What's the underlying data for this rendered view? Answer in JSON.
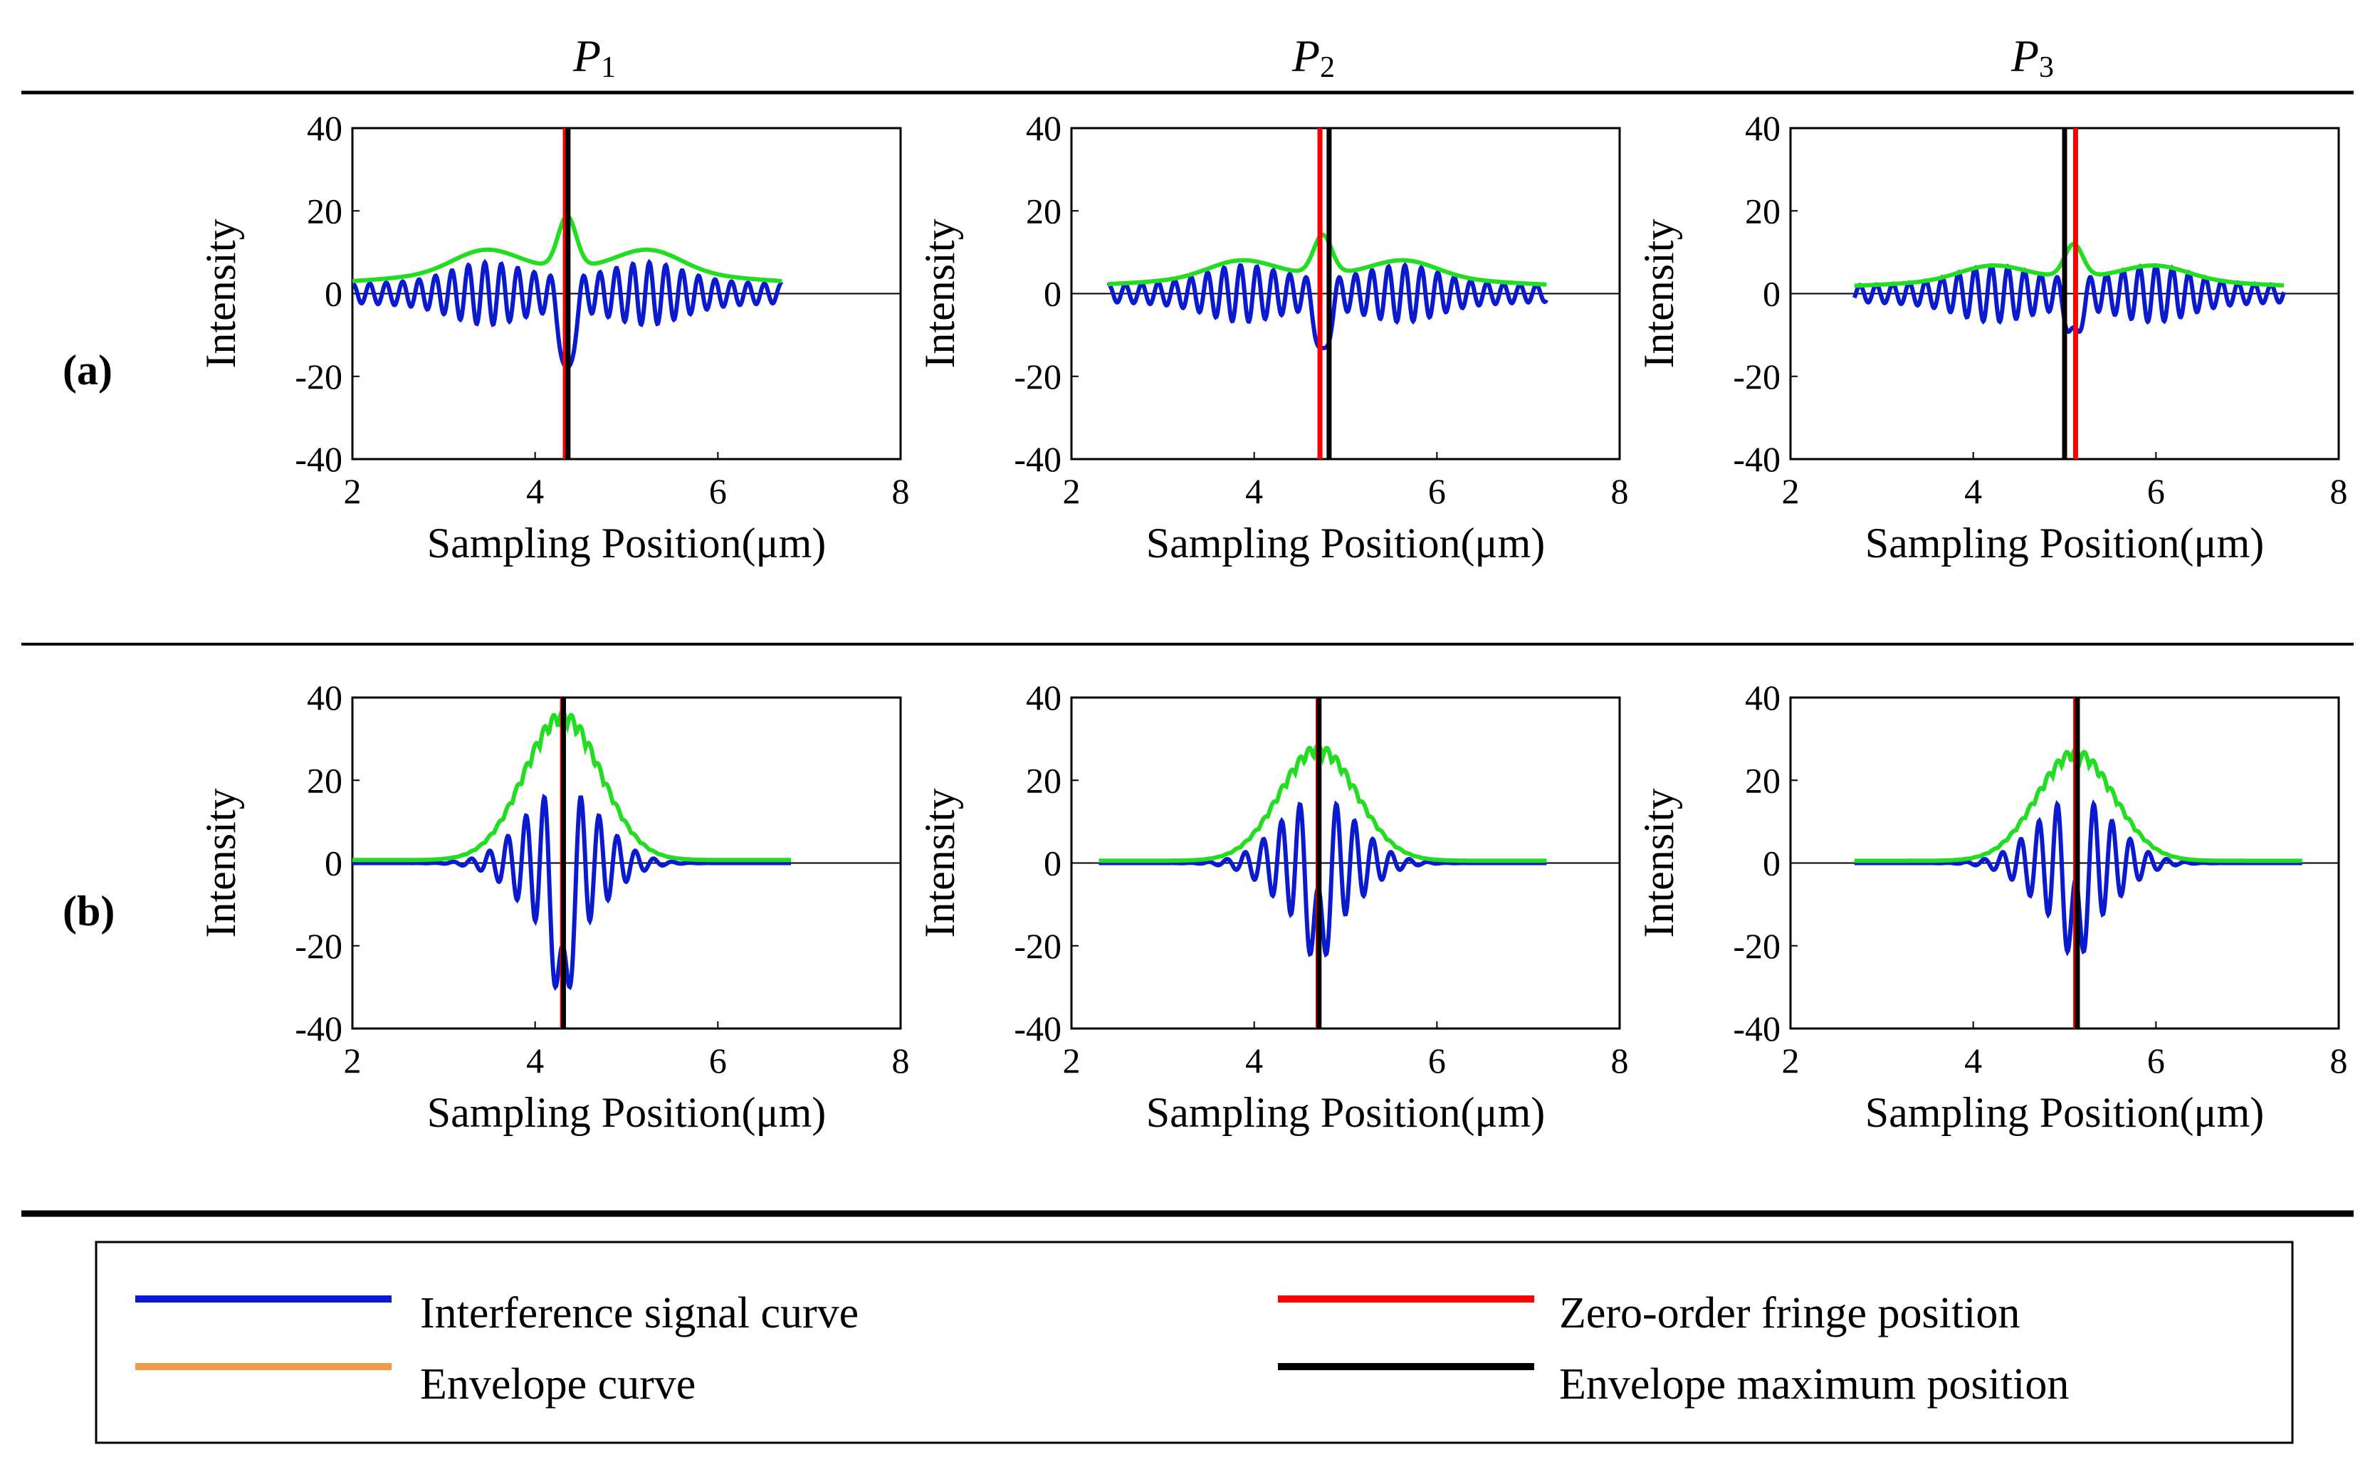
{
  "figure": {
    "column_headers": [
      "P1",
      "P2",
      "P3"
    ],
    "row_labels": [
      "(a)",
      "(b)"
    ],
    "legend": [
      {
        "label": "Interference signal curve",
        "color": "#0a1acc"
      },
      {
        "label": "Envelope curve",
        "color": "#f49a48"
      },
      {
        "label": "Zero-order fringe position",
        "color": "#ff0000"
      },
      {
        "label": "Envelope maximum position",
        "color": "#000000"
      }
    ],
    "envelope_plot_color": "#22dd22"
  },
  "chart_data": [
    {
      "type": "line",
      "row": "(a)",
      "column": "P1",
      "xlabel": "Sampling Position(μm)",
      "ylabel": "Intensity",
      "xlim": [
        2,
        8
      ],
      "ylim": [
        -40,
        40
      ],
      "xticks": [
        2,
        4,
        6,
        8
      ],
      "yticks": [
        40,
        20,
        0,
        -20,
        -40
      ],
      "signal": {
        "x_range": [
          2.0,
          6.7
        ],
        "center": 4.35,
        "amplitude": 11,
        "period": 0.18,
        "sigma": 1.6,
        "dip": -22
      },
      "envelope_peak": 25,
      "zero_order_fringe_position": 4.33,
      "envelope_maximum_position": 4.36
    },
    {
      "type": "line",
      "row": "(a)",
      "column": "P2",
      "xlabel": "Sampling Position(μm)",
      "ylabel": "Intensity",
      "xlim": [
        2,
        8
      ],
      "ylim": [
        -40,
        40
      ],
      "xticks": [
        2,
        4,
        6,
        8
      ],
      "yticks": [
        40,
        20,
        0,
        -20,
        -40
      ],
      "signal": {
        "x_range": [
          2.4,
          7.2
        ],
        "center": 4.75,
        "amplitude": 10,
        "period": 0.18,
        "sigma": 1.6,
        "dip": -17
      },
      "envelope_peak": 19,
      "zero_order_fringe_position": 4.72,
      "envelope_maximum_position": 4.82
    },
    {
      "type": "line",
      "row": "(a)",
      "column": "P3",
      "xlabel": "Sampling Position(μm)",
      "ylabel": "Intensity",
      "xlim": [
        2,
        8
      ],
      "ylim": [
        -40,
        40
      ],
      "xticks": [
        2,
        4,
        6,
        8
      ],
      "yticks": [
        40,
        20,
        0,
        -20,
        -40
      ],
      "signal": {
        "x_range": [
          2.7,
          7.4
        ],
        "center": 5.1,
        "amplitude": 10,
        "period": 0.18,
        "sigma": 1.6,
        "dip": -12
      },
      "envelope_peak": 16,
      "zero_order_fringe_position": 5.12,
      "envelope_maximum_position": 5.0
    },
    {
      "type": "line",
      "row": "(b)",
      "column": "P1",
      "xlabel": "Sampling Position(μm)",
      "ylabel": "Intensity",
      "xlim": [
        2,
        8
      ],
      "ylim": [
        -40,
        40
      ],
      "xticks": [
        2,
        4,
        6,
        8
      ],
      "yticks": [
        40,
        20,
        0,
        -20,
        -40
      ],
      "signal": {
        "x_range": [
          2.0,
          6.8
        ],
        "center": 4.3,
        "amplitude": 18,
        "period": 0.2,
        "sigma": 0.42,
        "dip": -38
      },
      "envelope_peak": 36,
      "zero_order_fringe_position": 4.3,
      "envelope_maximum_position": 4.31
    },
    {
      "type": "line",
      "row": "(b)",
      "column": "P2",
      "xlabel": "Sampling Position(μm)",
      "ylabel": "Intensity",
      "xlim": [
        2,
        8
      ],
      "ylim": [
        -40,
        40
      ],
      "xticks": [
        2,
        4,
        6,
        8
      ],
      "yticks": [
        40,
        20,
        0,
        -20,
        -40
      ],
      "signal": {
        "x_range": [
          2.3,
          7.2
        ],
        "center": 4.7,
        "amplitude": 16,
        "period": 0.2,
        "sigma": 0.42,
        "dip": -22
      },
      "envelope_peak": 28,
      "zero_order_fringe_position": 4.7,
      "envelope_maximum_position": 4.71
    },
    {
      "type": "line",
      "row": "(b)",
      "column": "P3",
      "xlabel": "Sampling Position(μm)",
      "ylabel": "Intensity",
      "xlim": [
        2,
        8
      ],
      "ylim": [
        -40,
        40
      ],
      "xticks": [
        2,
        4,
        6,
        8
      ],
      "yticks": [
        40,
        20,
        0,
        -20,
        -40
      ],
      "signal": {
        "x_range": [
          2.7,
          7.6
        ],
        "center": 5.12,
        "amplitude": 16,
        "period": 0.2,
        "sigma": 0.42,
        "dip": -20
      },
      "envelope_peak": 27,
      "zero_order_fringe_position": 5.12,
      "envelope_maximum_position": 5.14
    }
  ]
}
